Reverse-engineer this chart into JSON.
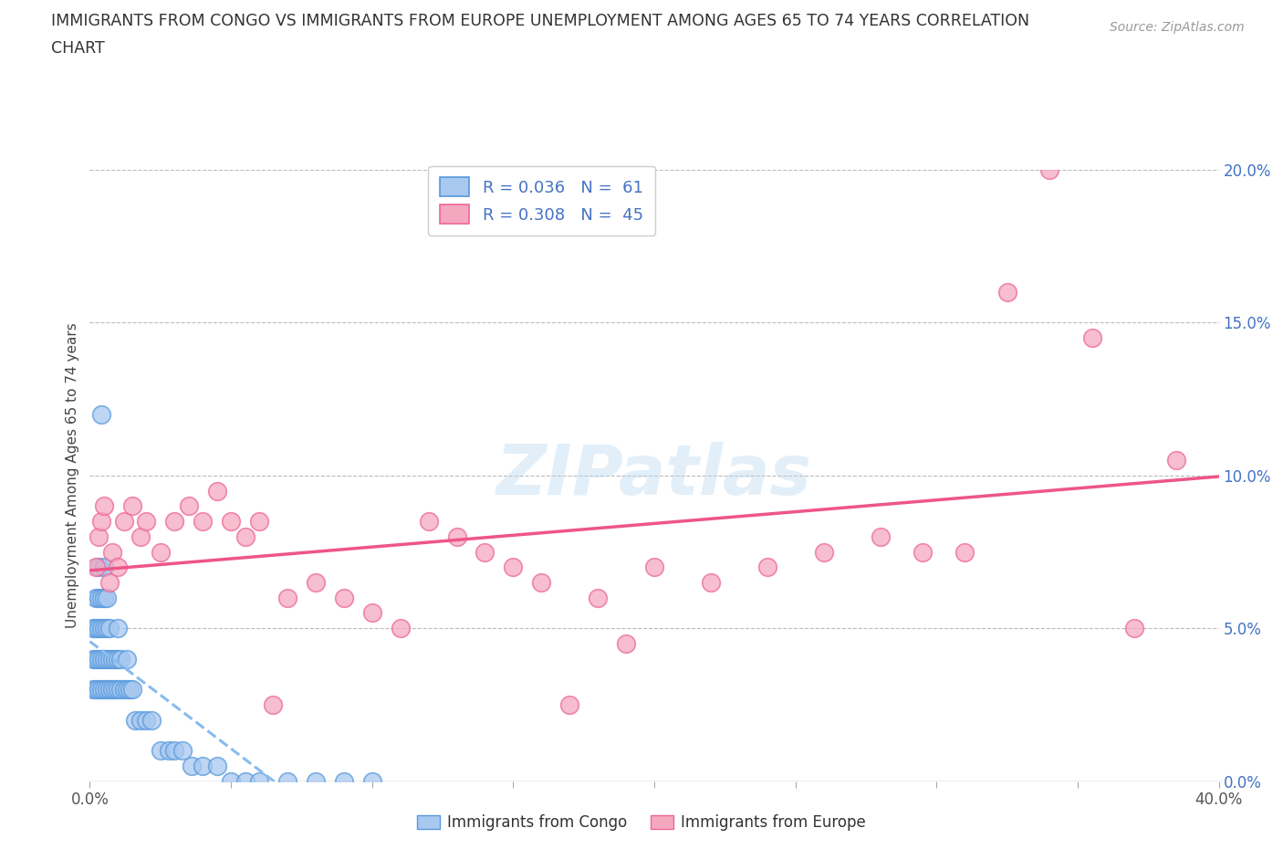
{
  "title_line1": "IMMIGRANTS FROM CONGO VS IMMIGRANTS FROM EUROPE UNEMPLOYMENT AMONG AGES 65 TO 74 YEARS CORRELATION",
  "title_line2": "CHART",
  "source": "Source: ZipAtlas.com",
  "ylabel": "Unemployment Among Ages 65 to 74 years",
  "xlim": [
    0.0,
    0.4
  ],
  "ylim": [
    0.0,
    0.2
  ],
  "xticks": [
    0.0,
    0.05,
    0.1,
    0.15,
    0.2,
    0.25,
    0.3,
    0.35,
    0.4
  ],
  "yticks": [
    0.0,
    0.05,
    0.1,
    0.15,
    0.2
  ],
  "xticklabels": [
    "0.0%",
    "",
    "",
    "",
    "",
    "",
    "",
    "",
    "40.0%"
  ],
  "yticklabels": [
    "0.0%",
    "5.0%",
    "10.0%",
    "15.0%",
    "20.0%"
  ],
  "congo_color": "#a8c8f0",
  "europe_color": "#f4a8c0",
  "congo_edge": "#5599dd",
  "europe_edge": "#ee6699",
  "trendline_congo_color": "#88bbee",
  "trendline_europe_color": "#ee5588",
  "legend_label_congo": "R = 0.036   N =  61",
  "legend_label_europe": "R = 0.308   N =  45",
  "watermark": "ZIPatlas",
  "background_color": "#ffffff",
  "grid_color": "#bbbbbb",
  "congo_x": [
    0.001,
    0.001,
    0.001,
    0.002,
    0.002,
    0.002,
    0.002,
    0.003,
    0.003,
    0.003,
    0.003,
    0.003,
    0.004,
    0.004,
    0.004,
    0.004,
    0.005,
    0.005,
    0.005,
    0.005,
    0.005,
    0.006,
    0.006,
    0.006,
    0.006,
    0.007,
    0.007,
    0.007,
    0.008,
    0.008,
    0.009,
    0.009,
    0.01,
    0.01,
    0.01,
    0.011,
    0.011,
    0.012,
    0.013,
    0.013,
    0.014,
    0.015,
    0.016,
    0.018,
    0.02,
    0.022,
    0.025,
    0.028,
    0.03,
    0.033,
    0.036,
    0.04,
    0.045,
    0.05,
    0.055,
    0.06,
    0.07,
    0.08,
    0.09,
    0.1,
    0.004
  ],
  "congo_y": [
    0.03,
    0.04,
    0.05,
    0.03,
    0.04,
    0.05,
    0.06,
    0.03,
    0.04,
    0.05,
    0.06,
    0.07,
    0.03,
    0.04,
    0.05,
    0.06,
    0.03,
    0.04,
    0.05,
    0.06,
    0.07,
    0.03,
    0.04,
    0.05,
    0.06,
    0.03,
    0.04,
    0.05,
    0.03,
    0.04,
    0.03,
    0.04,
    0.03,
    0.04,
    0.05,
    0.03,
    0.04,
    0.03,
    0.03,
    0.04,
    0.03,
    0.03,
    0.02,
    0.02,
    0.02,
    0.02,
    0.01,
    0.01,
    0.01,
    0.01,
    0.005,
    0.005,
    0.005,
    0.0,
    0.0,
    0.0,
    0.0,
    0.0,
    0.0,
    0.0,
    0.12
  ],
  "europe_x": [
    0.002,
    0.003,
    0.004,
    0.005,
    0.007,
    0.008,
    0.01,
    0.012,
    0.015,
    0.018,
    0.02,
    0.025,
    0.03,
    0.035,
    0.04,
    0.045,
    0.05,
    0.055,
    0.06,
    0.065,
    0.07,
    0.08,
    0.09,
    0.1,
    0.11,
    0.12,
    0.13,
    0.14,
    0.15,
    0.16,
    0.17,
    0.18,
    0.19,
    0.2,
    0.22,
    0.24,
    0.26,
    0.28,
    0.295,
    0.31,
    0.325,
    0.34,
    0.355,
    0.37,
    0.385
  ],
  "europe_y": [
    0.07,
    0.08,
    0.085,
    0.09,
    0.065,
    0.075,
    0.07,
    0.085,
    0.09,
    0.08,
    0.085,
    0.075,
    0.085,
    0.09,
    0.085,
    0.095,
    0.085,
    0.08,
    0.085,
    0.025,
    0.06,
    0.065,
    0.06,
    0.055,
    0.05,
    0.085,
    0.08,
    0.075,
    0.07,
    0.065,
    0.025,
    0.06,
    0.045,
    0.07,
    0.065,
    0.07,
    0.075,
    0.08,
    0.075,
    0.075,
    0.16,
    0.2,
    0.145,
    0.05,
    0.105
  ]
}
